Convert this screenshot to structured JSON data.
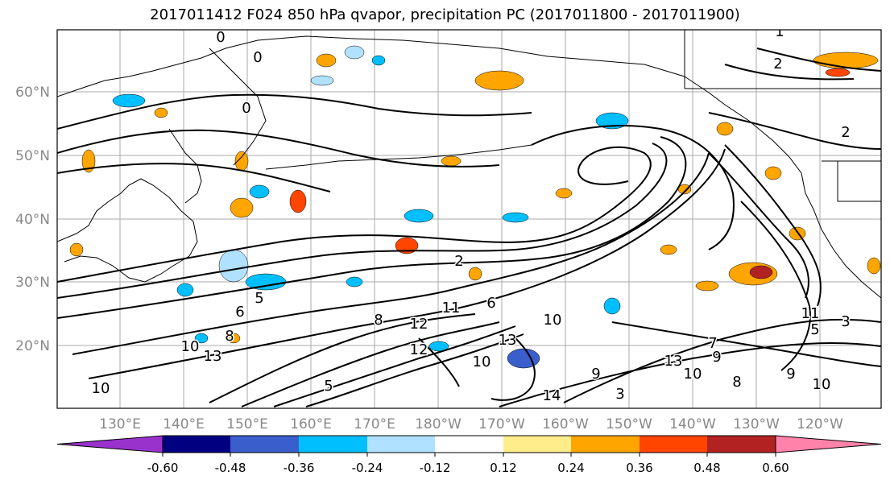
{
  "title": "2017011412 F024 850 hPa qvapor, precipitation PC (2017011800 - 2017011900)",
  "map": {
    "lon_ticks": [
      "130°E",
      "140°E",
      "150°E",
      "160°E",
      "170°E",
      "180°W",
      "170°W",
      "160°W",
      "150°W",
      "140°W",
      "130°W",
      "120°W"
    ],
    "lat_ticks": [
      "60°N",
      "50°N",
      "40°N",
      "30°N",
      "20°N"
    ],
    "tick_label_color": "#888888",
    "grid": true,
    "contour_labels": [
      "0",
      "1",
      "2",
      "0",
      "0",
      "2",
      "5",
      "6",
      "8",
      "10",
      "13",
      "10",
      "14",
      "12",
      "10",
      "8",
      "6",
      "5",
      "10",
      "13",
      "12",
      "13",
      "10",
      "9",
      "7",
      "8",
      "9",
      "10",
      "11",
      "11",
      "5",
      "3",
      "2",
      "9",
      "3"
    ]
  },
  "colorbar": {
    "ticks": [
      "-0.60",
      "-0.48",
      "-0.36",
      "-0.24",
      "-0.12",
      "0.12",
      "0.24",
      "0.36",
      "0.48",
      "0.60"
    ],
    "colors": [
      "#9932cc",
      "#000080",
      "#3a5fcd",
      "#00bfff",
      "#b0e2ff",
      "#ffffff",
      "#ffec8b",
      "#ffa500",
      "#ff4500",
      "#b22222",
      "#ff82ab"
    ]
  }
}
